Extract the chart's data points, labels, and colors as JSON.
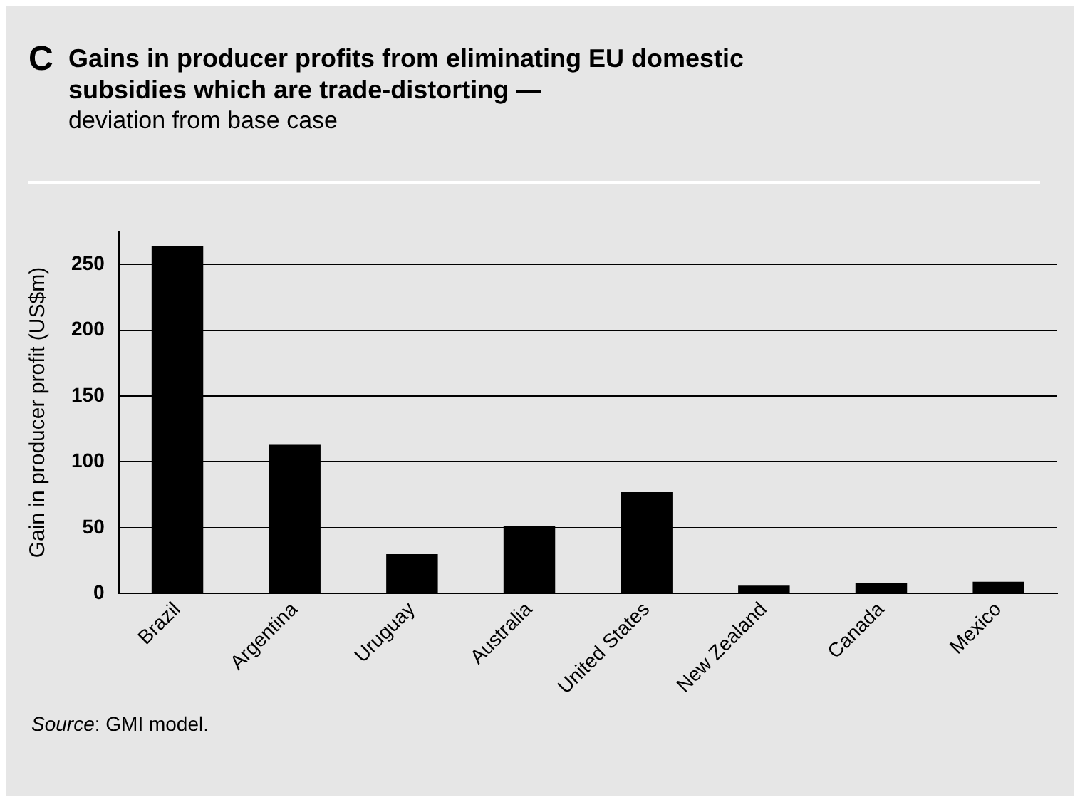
{
  "chart_data": {
    "type": "bar",
    "title": "Gains in producer profits from eliminating EU domestic subsidies which are trade-distorting —",
    "subtitle": "deviation from base case",
    "ylabel": "Gain in producer profit (US$m)",
    "annotations": [
      "C",
      "Source: GMI model."
    ],
    "categories": [
      "Brazil",
      "Argentina",
      "Uruguay",
      "Australia",
      "United States",
      "New Zealand",
      "Canada",
      "Mexico"
    ],
    "values": [
      264,
      113,
      30,
      51,
      77,
      6,
      8,
      9
    ],
    "color": "#000000",
    "ylim": [
      0,
      275
    ],
    "yticks": [
      0,
      50,
      100,
      150,
      200,
      250
    ],
    "grid": "y"
  }
}
